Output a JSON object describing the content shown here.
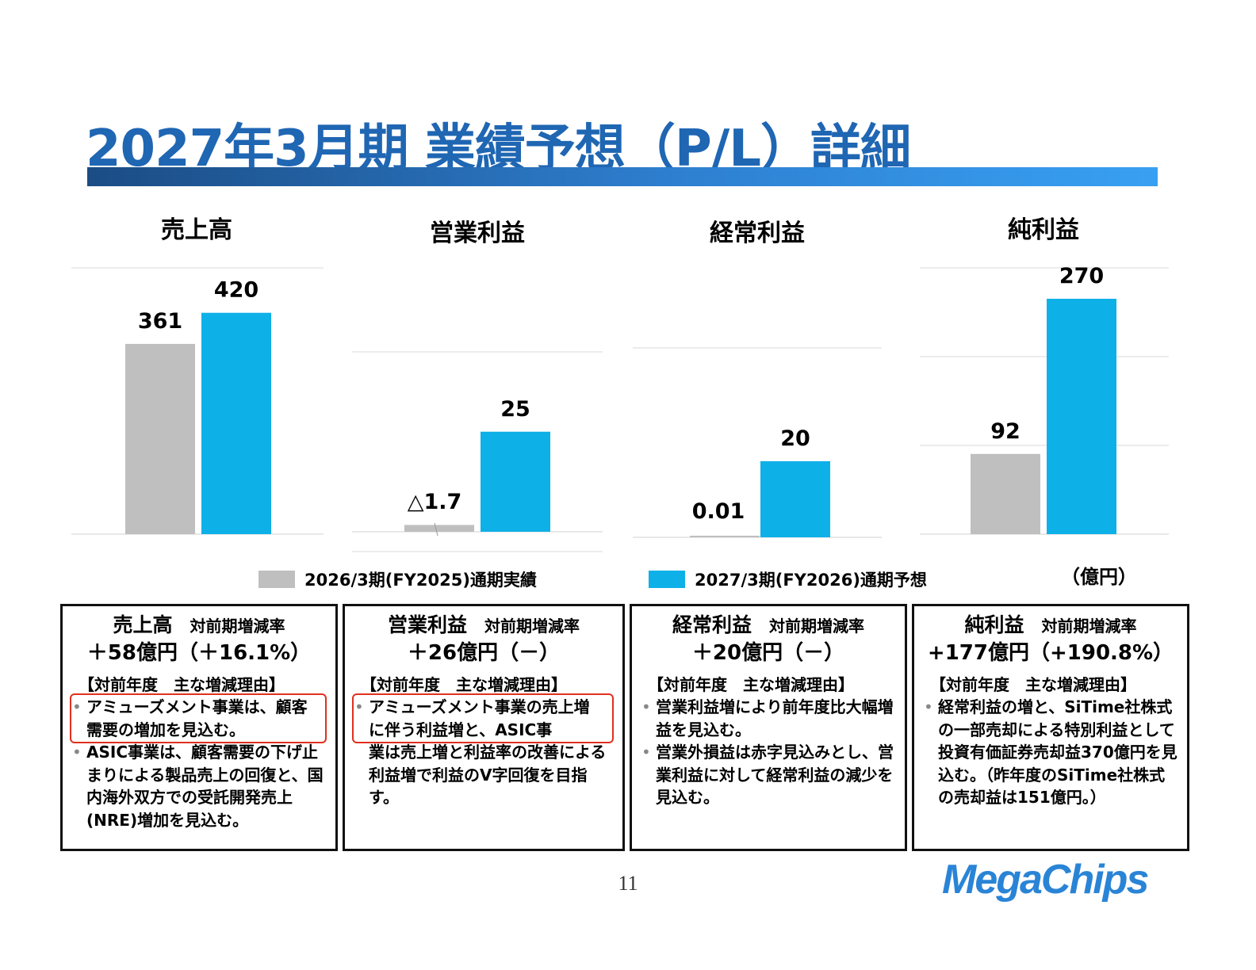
{
  "title": "2027年3月期 業績予想（P/L）詳細",
  "unit": "（億円）",
  "legend": [
    {
      "label": "2026/3期(FY2025)通期実績",
      "color": "#BFBFBF"
    },
    {
      "label": "2027/3期(FY2026)通期予想",
      "color": "#0EB0E8"
    }
  ],
  "chart_data": [
    {
      "type": "bar",
      "title": "売上高",
      "series": [
        {
          "name": "2026/3期(FY2025)通期実績",
          "values": [
            361
          ],
          "labels": [
            "361"
          ]
        },
        {
          "name": "2027/3期(FY2026)通期予想",
          "values": [
            420
          ],
          "labels": [
            "420"
          ]
        }
      ]
    },
    {
      "type": "bar",
      "title": "営業利益",
      "series": [
        {
          "name": "2026/3期(FY2025)通期実績",
          "values": [
            -1.7
          ],
          "labels": [
            "△1.7"
          ]
        },
        {
          "name": "2027/3期(FY2026)通期予想",
          "values": [
            25
          ],
          "labels": [
            "25"
          ]
        }
      ]
    },
    {
      "type": "bar",
      "title": "経常利益",
      "series": [
        {
          "name": "2026/3期(FY2025)通期実績",
          "values": [
            0.01
          ],
          "labels": [
            "0.01"
          ]
        },
        {
          "name": "2027/3期(FY2026)通期予想",
          "values": [
            20
          ],
          "labels": [
            "20"
          ]
        }
      ]
    },
    {
      "type": "bar",
      "title": "純利益",
      "series": [
        {
          "name": "2026/3期(FY2025)通期実績",
          "values": [
            92
          ],
          "labels": [
            "92"
          ]
        },
        {
          "name": "2027/3期(FY2026)通期予想",
          "values": [
            270
          ],
          "labels": [
            "270"
          ]
        }
      ]
    }
  ],
  "boxes": [
    {
      "name": "売上高",
      "rate_label": "対前期増減率",
      "delta": "＋58億円（＋16.1%）",
      "reason_head": "【対前年度　主な増減理由】",
      "bullets": [
        {
          "text": "アミューズメント事業は、顧客需要の増加を見込む。",
          "highlight": true
        },
        {
          "text": "ASIC事業は、顧客需要の下げ止まりによる製品売上の回復と、国内海外双方での受託開発売上(NRE)増加を見込む。",
          "highlight": false
        }
      ]
    },
    {
      "name": "営業利益",
      "rate_label": "対前期増減率",
      "delta": "＋26億円（－）",
      "reason_head": "【対前年度　主な増減理由】",
      "bullets": [
        {
          "text": "アミューズメント事業の売上増に伴う利益増と、ASIC事",
          "highlight": true
        },
        {
          "text": "業は売上増と利益率の改善による利益増で利益のV字回復を目指す。",
          "highlight": false,
          "no_bullet": true
        }
      ]
    },
    {
      "name": "経常利益",
      "rate_label": "対前期増減率",
      "delta": "＋20億円（－）",
      "reason_head": "【対前年度　主な増減理由】",
      "bullets": [
        {
          "text": "営業利益増により前年度比大幅増益を見込む。",
          "highlight": false
        },
        {
          "text": "営業外損益は赤字見込みとし、営業利益に対して経常利益の減少を見込む。",
          "highlight": false
        }
      ]
    },
    {
      "name": "純利益",
      "rate_label": "対前期増減率",
      "delta": "+177億円（+190.8%）",
      "reason_head": "【対前年度　主な増減理由】",
      "bullets": [
        {
          "text": "経常利益の増と、SiTime社株式の一部売却による特別利益として投資有価証券売却益370億円を見込む。（昨年度のSiTime社株式の売却益は151億円。）",
          "highlight": false
        }
      ]
    }
  ],
  "page_number": "11",
  "logo": "MegaChips"
}
